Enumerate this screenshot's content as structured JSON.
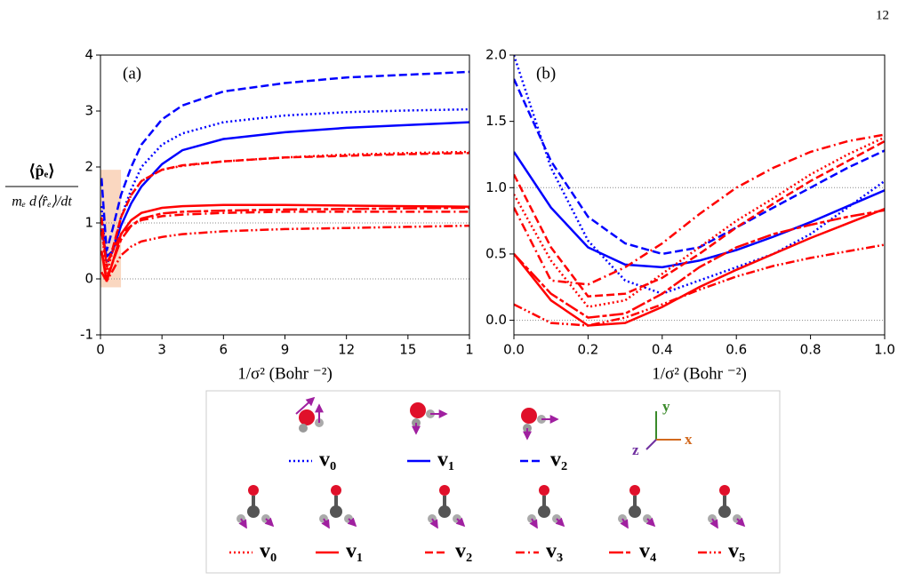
{
  "page_number": "12",
  "chart_data": [
    {
      "type": "line",
      "panel_label": "(a)",
      "xlabel": "1/σ² (Bohr ⁻²)",
      "ylabel_numerator": "⟨p̂ₑ⟩",
      "ylabel_denominator": "mₑ d⟨r̂ₑ⟩/dt",
      "x": [
        0.05,
        0.3,
        0.6,
        1,
        1.5,
        2,
        3,
        4,
        6,
        9,
        12,
        15,
        18
      ],
      "xlim": [
        0,
        18
      ],
      "ylim": [
        -1,
        4
      ],
      "xticks": [
        0,
        3,
        6,
        9,
        12,
        15,
        {
          "value": 18,
          "label": "1"
        }
      ],
      "yticks": [
        -1,
        0,
        1,
        2,
        3,
        4
      ],
      "reference_lines": [
        0,
        1
      ],
      "highlight": {
        "x": [
          0,
          1
        ],
        "y": [
          -0.15,
          1.95
        ],
        "color": "#f9cdb0"
      },
      "series": [
        {
          "name": "v₀",
          "color": "#0000ff",
          "linestyle": "dotted",
          "values": [
            1.3,
            0.25,
            0.5,
            1.1,
            1.6,
            2.0,
            2.4,
            2.6,
            2.8,
            2.92,
            2.98,
            3.01,
            3.03
          ]
        },
        {
          "name": "v₁",
          "color": "#0000ff",
          "linestyle": "solid",
          "values": [
            0.9,
            0.4,
            0.5,
            0.95,
            1.35,
            1.65,
            2.05,
            2.3,
            2.5,
            2.62,
            2.7,
            2.75,
            2.8
          ]
        },
        {
          "name": "v₂",
          "color": "#0000ff",
          "linestyle": "dashed",
          "values": [
            1.8,
            0.5,
            0.9,
            1.5,
            2.0,
            2.4,
            2.85,
            3.1,
            3.35,
            3.5,
            3.6,
            3.65,
            3.7
          ]
        },
        {
          "name": "v₀",
          "color": "#ff0000",
          "linestyle": "dotted",
          "values": [
            0.9,
            0.1,
            0.5,
            1.1,
            1.5,
            1.75,
            1.95,
            2.02,
            2.1,
            2.17,
            2.22,
            2.25,
            2.27
          ]
        },
        {
          "name": "v₁",
          "color": "#ff0000",
          "linestyle": "solid",
          "values": [
            0.5,
            -0.05,
            0.3,
            0.8,
            1.05,
            1.18,
            1.27,
            1.3,
            1.32,
            1.32,
            1.31,
            1.3,
            1.29
          ]
        },
        {
          "name": "v₂",
          "color": "#ff0000",
          "linestyle": "dashed",
          "values": [
            1.1,
            0.2,
            0.55,
            1.1,
            1.5,
            1.75,
            1.95,
            2.03,
            2.1,
            2.17,
            2.2,
            2.23,
            2.25
          ]
        },
        {
          "name": "v₃",
          "color": "#ff0000",
          "linestyle": "dashdot",
          "values": [
            0.85,
            0.27,
            0.5,
            0.8,
            0.95,
            1.05,
            1.12,
            1.15,
            1.18,
            1.2,
            1.2,
            1.2,
            1.2
          ]
        },
        {
          "name": "v₄",
          "color": "#ff0000",
          "linestyle": "longdash",
          "values": [
            0.5,
            0.02,
            0.3,
            0.7,
            0.95,
            1.08,
            1.17,
            1.2,
            1.22,
            1.24,
            1.25,
            1.26,
            1.27
          ]
        },
        {
          "name": "v₅",
          "color": "#ff0000",
          "linestyle": "dashdotdot",
          "values": [
            0.12,
            -0.04,
            0.15,
            0.42,
            0.58,
            0.67,
            0.75,
            0.8,
            0.85,
            0.89,
            0.91,
            0.93,
            0.95
          ]
        }
      ]
    },
    {
      "type": "line",
      "panel_label": "(b)",
      "xlabel": "1/σ² (Bohr ⁻²)",
      "x": [
        0,
        0.1,
        0.2,
        0.3,
        0.4,
        0.5,
        0.6,
        0.7,
        0.8,
        0.9,
        1.0
      ],
      "xlim": [
        0,
        1
      ],
      "ylim": [
        -0.11,
        2
      ],
      "xticks": [
        {
          "value": 0,
          "label": "0.0"
        },
        0.2,
        0.4,
        0.6,
        0.8,
        {
          "value": 1,
          "label": "1.0"
        }
      ],
      "yticks": [
        {
          "value": 0,
          "label": "0.0"
        },
        0.5,
        {
          "value": 1,
          "label": "1.0"
        },
        1.5,
        {
          "value": 2,
          "label": "2.0"
        }
      ],
      "reference_lines": [
        0,
        1
      ],
      "series": [
        {
          "color": "#0000ff",
          "linestyle": "dotted",
          "values": [
            2.0,
            1.15,
            0.6,
            0.3,
            0.2,
            0.3,
            0.4,
            0.5,
            0.65,
            0.85,
            1.05
          ]
        },
        {
          "color": "#0000ff",
          "linestyle": "solid",
          "values": [
            1.27,
            0.85,
            0.55,
            0.42,
            0.4,
            0.45,
            0.53,
            0.63,
            0.74,
            0.86,
            0.98
          ]
        },
        {
          "color": "#0000ff",
          "linestyle": "dashed",
          "values": [
            1.82,
            1.2,
            0.78,
            0.58,
            0.5,
            0.55,
            0.7,
            0.85,
            1.0,
            1.15,
            1.28
          ]
        },
        {
          "color": "#ff0000",
          "linestyle": "dotted",
          "values": [
            0.95,
            0.45,
            0.1,
            0.15,
            0.35,
            0.55,
            0.75,
            0.92,
            1.1,
            1.25,
            1.38
          ]
        },
        {
          "color": "#ff0000",
          "linestyle": "solid",
          "values": [
            0.5,
            0.15,
            -0.04,
            -0.02,
            0.1,
            0.25,
            0.38,
            0.5,
            0.62,
            0.73,
            0.84
          ]
        },
        {
          "color": "#ff0000",
          "linestyle": "dashed",
          "values": [
            1.1,
            0.55,
            0.18,
            0.2,
            0.32,
            0.5,
            0.7,
            0.88,
            1.05,
            1.2,
            1.35
          ]
        },
        {
          "color": "#ff0000",
          "linestyle": "dashdot",
          "values": [
            0.85,
            0.3,
            0.27,
            0.4,
            0.58,
            0.8,
            1.0,
            1.15,
            1.27,
            1.35,
            1.4
          ]
        },
        {
          "color": "#ff0000",
          "linestyle": "longdash",
          "values": [
            0.5,
            0.2,
            0.02,
            0.05,
            0.2,
            0.4,
            0.55,
            0.65,
            0.72,
            0.78,
            0.83
          ]
        },
        {
          "color": "#ff0000",
          "linestyle": "dashdotdot",
          "values": [
            0.12,
            -0.02,
            -0.04,
            0.02,
            0.12,
            0.23,
            0.33,
            0.41,
            0.47,
            0.52,
            0.57
          ]
        }
      ]
    }
  ],
  "axes_icon": {
    "x": "x",
    "y": "y",
    "z": "z"
  }
}
